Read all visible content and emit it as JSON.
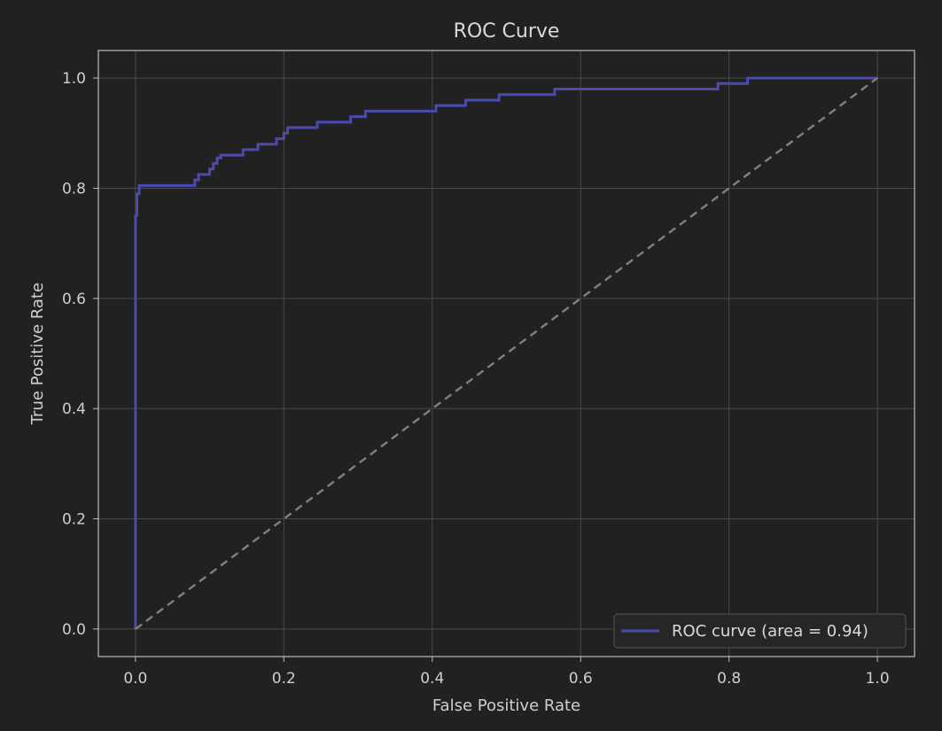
{
  "colors": {
    "background": "#212121",
    "grid": "#4a4a4a",
    "axes": "#bdbdbd",
    "roc_line": "#4a4ab0",
    "chance_line": "#808080",
    "legend_bg": "#262626",
    "legend_border": "#555555"
  },
  "chart_data": {
    "type": "line",
    "title": "ROC Curve",
    "xlabel": "False Positive Rate",
    "ylabel": "True Positive Rate",
    "xlim": [
      -0.05,
      1.05
    ],
    "ylim": [
      -0.05,
      1.05
    ],
    "xticks": [
      0.0,
      0.2,
      0.4,
      0.6,
      0.8,
      1.0
    ],
    "xtick_labels": [
      "0.0",
      "0.2",
      "0.4",
      "0.6",
      "0.8",
      "1.0"
    ],
    "yticks": [
      0.0,
      0.2,
      0.4,
      0.6,
      0.8,
      1.0
    ],
    "ytick_labels": [
      "0.0",
      "0.2",
      "0.4",
      "0.6",
      "0.8",
      "1.0"
    ],
    "grid": true,
    "legend_position": "lower-right",
    "series": [
      {
        "name": "ROC curve (area = 0.94)",
        "style": "solid",
        "x": [
          0.0,
          0.0,
          0.002,
          0.002,
          0.005,
          0.005,
          0.08,
          0.08,
          0.085,
          0.085,
          0.1,
          0.1,
          0.105,
          0.105,
          0.11,
          0.11,
          0.115,
          0.115,
          0.145,
          0.145,
          0.165,
          0.165,
          0.19,
          0.19,
          0.2,
          0.2,
          0.205,
          0.205,
          0.245,
          0.245,
          0.29,
          0.29,
          0.31,
          0.31,
          0.405,
          0.405,
          0.445,
          0.445,
          0.49,
          0.49,
          0.565,
          0.565,
          0.785,
          0.785,
          0.825,
          0.825,
          1.0
        ],
        "y": [
          0.0,
          0.75,
          0.75,
          0.79,
          0.79,
          0.805,
          0.805,
          0.815,
          0.815,
          0.825,
          0.825,
          0.835,
          0.835,
          0.845,
          0.845,
          0.855,
          0.855,
          0.86,
          0.86,
          0.87,
          0.87,
          0.88,
          0.88,
          0.89,
          0.89,
          0.9,
          0.9,
          0.91,
          0.91,
          0.92,
          0.92,
          0.93,
          0.93,
          0.94,
          0.94,
          0.95,
          0.95,
          0.96,
          0.96,
          0.97,
          0.97,
          0.98,
          0.98,
          0.99,
          0.99,
          1.0,
          1.0
        ]
      },
      {
        "style": "dashed",
        "x": [
          0.0,
          1.0
        ],
        "y": [
          0.0,
          1.0
        ]
      }
    ]
  }
}
